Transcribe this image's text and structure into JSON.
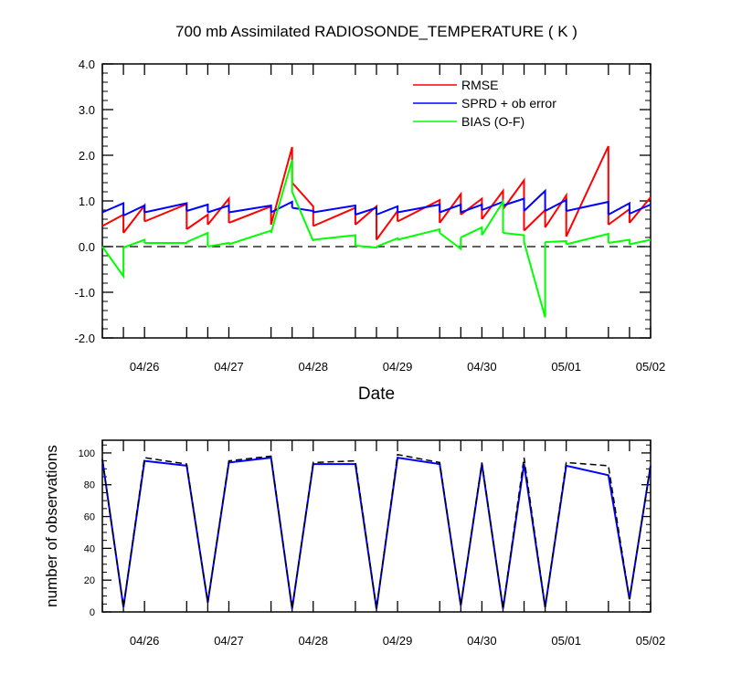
{
  "chart_data": [
    {
      "type": "line",
      "title": "700 mb Assimilated RADIOSONDE_TEMPERATURE ( K )",
      "xlabel": "Date",
      "ylabel": "",
      "ylim": [
        -2.0,
        4.0
      ],
      "yticks": [
        "-2.0",
        "-1.0",
        "0.0",
        "1.0",
        "2.0",
        "3.0",
        "4.0"
      ],
      "xlim": [
        "04/25 12:00",
        "05/02 00:00"
      ],
      "xtick_labels": [
        "04/26",
        "04/27",
        "04/28",
        "04/29",
        "04/30",
        "05/01",
        "05/02"
      ],
      "legend_position": "top-right",
      "x": [
        "04/25 12:00",
        "04/25 18:00",
        "04/26 00:00",
        "04/26 12:00",
        "04/26 18:00",
        "04/27 00:00",
        "04/27 12:00",
        "04/27 18:00",
        "04/28 00:00",
        "04/28 12:00",
        "04/28 18:00",
        "04/29 00:00",
        "04/29 12:00",
        "04/29 18:00",
        "04/30 00:00",
        "04/30 06:00",
        "04/30 12:00",
        "04/30 18:00",
        "05/01 00:00",
        "05/01 12:00",
        "05/01 18:00",
        "05/02 00:00"
      ],
      "series": [
        {
          "name": "RMSE",
          "color": "#ff0000",
          "segments": [
            [
              0.45,
              0.7
            ],
            [
              0.3,
              0.9
            ],
            [
              0.55,
              0.93
            ],
            [
              0.38,
              0.7
            ],
            [
              0.48,
              1.05
            ],
            [
              0.52,
              0.88
            ],
            [
              0.48,
              2.18
            ],
            [
              1.4,
              0.88
            ],
            [
              0.45,
              0.85
            ],
            [
              0.48,
              0.88
            ],
            [
              0.15,
              0.78
            ],
            [
              0.55,
              1.02
            ],
            [
              0.52,
              1.15
            ],
            [
              0.7,
              1.05
            ],
            [
              0.6,
              1.22
            ],
            [
              0.82,
              1.45
            ],
            [
              0.35,
              0.8
            ],
            [
              0.42,
              1.12
            ],
            [
              0.22,
              2.2
            ],
            [
              0.48,
              0.82
            ],
            [
              0.52,
              1.08
            ],
            [
              0.35,
              0.72
            ]
          ]
        },
        {
          "name": "SPRD + ob error",
          "color": "#0000ff",
          "segments": [
            [
              0.75,
              0.95
            ],
            [
              0.68,
              0.9
            ],
            [
              0.75,
              0.95
            ],
            [
              0.78,
              0.92
            ],
            [
              0.75,
              0.9
            ],
            [
              0.75,
              0.9
            ],
            [
              0.75,
              0.98
            ],
            [
              0.85,
              0.78
            ],
            [
              0.75,
              0.9
            ],
            [
              0.7,
              0.85
            ],
            [
              0.7,
              0.88
            ],
            [
              0.75,
              0.92
            ],
            [
              0.75,
              0.92
            ],
            [
              0.75,
              0.92
            ],
            [
              0.8,
              0.98
            ],
            [
              0.9,
              1.05
            ],
            [
              0.78,
              1.22
            ],
            [
              0.78,
              1.02
            ],
            [
              0.78,
              0.98
            ],
            [
              0.7,
              0.95
            ],
            [
              0.72,
              0.92
            ],
            [
              0.6,
              0.92
            ]
          ]
        },
        {
          "name": "BIAS (O-F)",
          "color": "#00ff00",
          "segments": [
            [
              0.0,
              -0.65
            ],
            [
              -0.02,
              0.15
            ],
            [
              0.08,
              0.08
            ],
            [
              0.1,
              0.3
            ],
            [
              0.0,
              0.08
            ],
            [
              0.05,
              0.35
            ],
            [
              0.3,
              1.9
            ],
            [
              1.2,
              0.12
            ],
            [
              0.15,
              0.25
            ],
            [
              0.02,
              -0.02
            ],
            [
              0.0,
              0.18
            ],
            [
              0.15,
              0.38
            ],
            [
              0.3,
              -0.05
            ],
            [
              0.2,
              0.42
            ],
            [
              0.25,
              0.98
            ],
            [
              0.3,
              0.25
            ],
            [
              0.1,
              -1.55
            ],
            [
              0.1,
              0.12
            ],
            [
              0.05,
              0.28
            ],
            [
              0.08,
              0.15
            ],
            [
              0.05,
              0.15
            ],
            [
              0.15,
              0.15
            ]
          ]
        }
      ]
    },
    {
      "type": "line",
      "title": "",
      "xlabel": "",
      "ylabel": "number of observations",
      "ylim": [
        0,
        108
      ],
      "yticks": [
        "0",
        "20",
        "40",
        "60",
        "80",
        "100"
      ],
      "xtick_labels": [
        "04/26",
        "04/27",
        "04/28",
        "04/29",
        "04/30",
        "05/01",
        "05/02"
      ],
      "x": [
        "04/25 12:00",
        "04/25 18:00",
        "04/26 00:00",
        "04/26 12:00",
        "04/26 18:00",
        "04/27 00:00",
        "04/27 12:00",
        "04/27 18:00",
        "04/28 00:00",
        "04/28 12:00",
        "04/28 18:00",
        "04/29 00:00",
        "04/29 12:00",
        "04/29 18:00",
        "04/30 00:00",
        "04/30 06:00",
        "04/30 12:00",
        "04/30 18:00",
        "05/01 00:00",
        "05/01 12:00",
        "05/01 18:00",
        "05/02 00:00"
      ],
      "series": [
        {
          "color": "#0000ff",
          "style": "solid",
          "values": [
            96,
            3,
            95,
            92,
            6,
            94,
            97,
            2,
            93,
            93,
            2,
            97,
            93,
            4,
            93,
            2,
            93,
            3,
            92,
            86,
            8,
            92
          ]
        },
        {
          "color": "#000000",
          "style": "dashed",
          "values": [
            96,
            3,
            97,
            93,
            6,
            95,
            98,
            2,
            94,
            95,
            2,
            99,
            94,
            4,
            94,
            2,
            97,
            3,
            94,
            92,
            8,
            92
          ]
        }
      ]
    }
  ]
}
